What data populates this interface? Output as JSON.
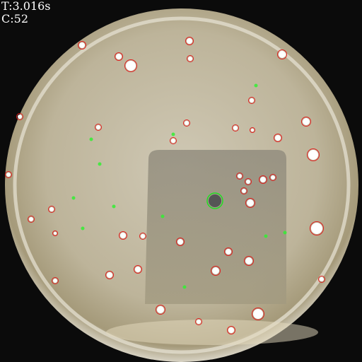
{
  "overlay": {
    "time": "T:3.016s",
    "count": "C:52"
  }
}
